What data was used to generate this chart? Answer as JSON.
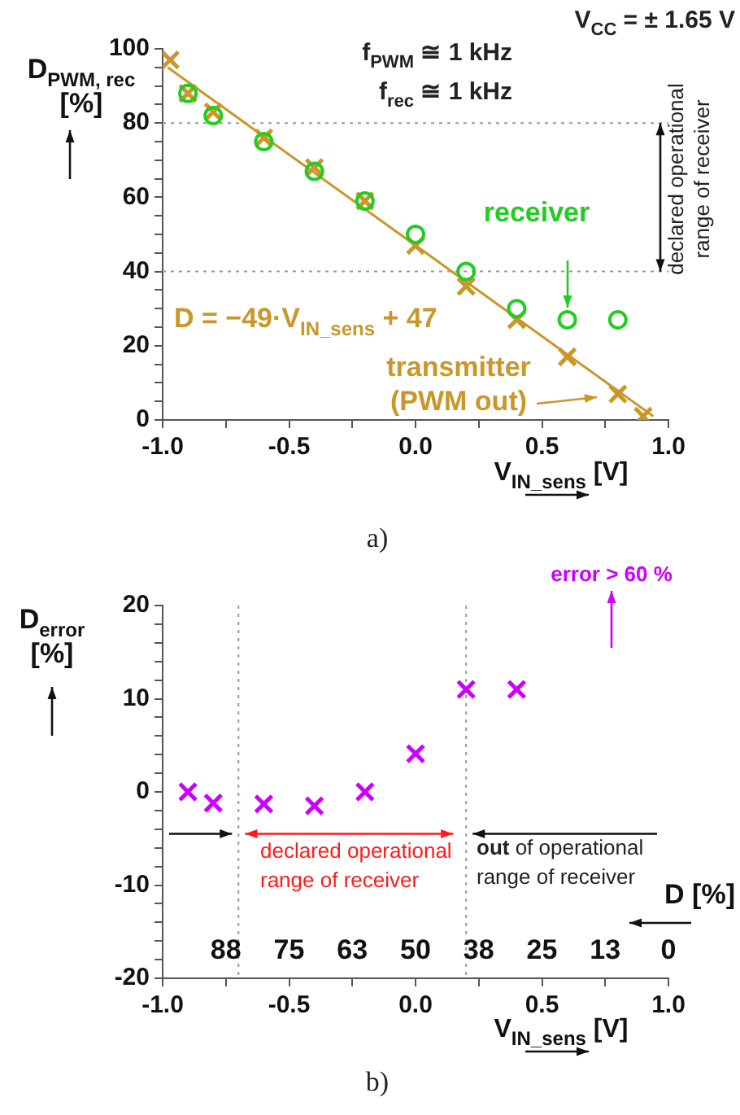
{
  "chart_data": [
    {
      "type": "scatter",
      "xlabel": "V$_{IN_sens}$ [V]",
      "ylabel": "D$_{PWM, rec}$ [%]",
      "xlim": [
        -1,
        1
      ],
      "xticks": [
        {
          "value": -1,
          "label": "-1.0"
        },
        {
          "value": -0.75,
          "label": null
        },
        {
          "value": -0.5,
          "label": "-0.5"
        },
        {
          "value": -0.25,
          "label": null
        },
        {
          "value": 0,
          "label": "0.0"
        },
        {
          "value": 0.25,
          "label": null
        },
        {
          "value": 0.5,
          "label": "0.5"
        },
        {
          "value": 0.75,
          "label": null
        },
        {
          "value": 1,
          "label": "1.0"
        }
      ],
      "ylim": [
        0,
        100
      ],
      "yticks": [
        0,
        {
          "value": 5,
          "label": null
        },
        {
          "value": 10,
          "label": null
        },
        {
          "value": 15,
          "label": null
        },
        20,
        {
          "value": 25,
          "label": null
        },
        {
          "value": 30,
          "label": null
        },
        {
          "value": 35,
          "label": null
        },
        40,
        {
          "value": 45,
          "label": null
        },
        {
          "value": 50,
          "label": null
        },
        {
          "value": 55,
          "label": null
        },
        60,
        {
          "value": 65,
          "label": null
        },
        {
          "value": 70,
          "label": null
        },
        {
          "value": 75,
          "label": null
        },
        80,
        {
          "value": 85,
          "label": null
        },
        {
          "value": 90,
          "label": null
        },
        {
          "value": 95,
          "label": null
        },
        100
      ],
      "series": [
        {
          "name": "receiver",
          "color": "#22cc22",
          "marker": "circle",
          "x": [
            -0.9,
            -0.8,
            -0.6,
            -0.4,
            -0.2,
            0,
            0.2,
            0.4,
            0.6,
            0.8
          ],
          "values": [
            88,
            82,
            75,
            67,
            59,
            50,
            40,
            30,
            27,
            27
          ]
        },
        {
          "name": "transmitter (PWM out)",
          "color": "#c9972a",
          "marker": "cross",
          "x": [
            -0.97,
            -0.9,
            -0.8,
            -0.6,
            -0.4,
            -0.2,
            0,
            0.2,
            0.4,
            0.6,
            0.8,
            0.9
          ],
          "values": [
            97,
            88,
            83,
            76,
            68,
            59,
            47,
            36,
            27,
            17,
            7,
            1
          ]
        },
        {
          "type": "line",
          "color": "#c9972a",
          "marker": "none",
          "x": [
            -0.98,
            0.94
          ],
          "values": [
            95,
            1
          ]
        }
      ],
      "ref_lines": [
        {
          "axis": "y",
          "value": 80,
          "label": null,
          "color": "#999999",
          "line_style": "dotted"
        },
        {
          "axis": "y",
          "value": 40,
          "label": null,
          "color": "#999999",
          "line_style": "dotted"
        }
      ],
      "annotations": [
        "V$_{CC}$ = ± 1.65 V",
        "f$_{PWM}$ ≅ 1 kHz",
        "f$_{rec}$ ≅ 1 kHz",
        "declared operational range of receiver",
        "a)",
        "D = −49·V$_{IN_sens}$ + 47"
      ],
      "grid": false
    },
    {
      "type": "scatter",
      "xlabel": "V$_{IN_sens}$ [V]",
      "ylabel": "D$_{error}$ [%]",
      "x2label": "D [%]",
      "xlim": [
        -1,
        1
      ],
      "xticks": [
        {
          "value": -1,
          "label": "-1.0"
        },
        {
          "value": -0.75,
          "label": null
        },
        {
          "value": -0.5,
          "label": "-0.5"
        },
        {
          "value": -0.25,
          "label": null
        },
        {
          "value": 0,
          "label": "0.0"
        },
        {
          "value": 0.25,
          "label": null
        },
        {
          "value": 0.5,
          "label": "0.5"
        },
        {
          "value": 0.75,
          "label": null
        },
        {
          "value": 1,
          "label": "1.0"
        }
      ],
      "x2lim": [
        100,
        0
      ],
      "x2ticks": [
        {
          "value": 87.5,
          "label": "88"
        },
        75,
        {
          "value": 62.5,
          "label": "63"
        },
        50,
        {
          "value": 37.5,
          "label": "38"
        },
        25,
        {
          "value": 12.5,
          "label": "13"
        },
        0
      ],
      "ylim": [
        -20,
        20
      ],
      "yticks": [
        -20,
        {
          "value": -18,
          "label": null
        },
        {
          "value": -16,
          "label": null
        },
        {
          "value": -14,
          "label": null
        },
        {
          "value": -12,
          "label": null
        },
        -10,
        {
          "value": -8,
          "label": null
        },
        {
          "value": -6,
          "label": null
        },
        {
          "value": -4,
          "label": null
        },
        {
          "value": -2,
          "label": null
        },
        0,
        {
          "value": 2,
          "label": null
        },
        {
          "value": 4,
          "label": null
        },
        {
          "value": 6,
          "label": null
        },
        {
          "value": 8,
          "label": null
        },
        10,
        {
          "value": 12,
          "label": null
        },
        {
          "value": 14,
          "label": null
        },
        {
          "value": 16,
          "label": null
        },
        {
          "value": 18,
          "label": null
        },
        20
      ],
      "series": [
        {
          "color": "#cc00ff",
          "marker": "cross",
          "x": [
            -0.9,
            -0.8,
            -0.6,
            -0.4,
            -0.2,
            0,
            0.2,
            0.4
          ],
          "values": [
            0,
            -1.2,
            -1.3,
            -1.5,
            0,
            4.1,
            11,
            11
          ]
        }
      ],
      "ref_lines": [
        {
          "axis": "x",
          "value": -0.7,
          "label": null,
          "color": "#999999",
          "line_style": "dotted"
        },
        {
          "axis": "x",
          "value": 0.2,
          "label": null,
          "color": "#999999",
          "line_style": "dotted"
        }
      ],
      "annotations": [
        "error > 60 %",
        "declared operational range of receiver",
        {
          "text": "out of operational range of receiver",
          "x": 0.2,
          "y": -4.5
        },
        "b)"
      ],
      "grid": false
    }
  ]
}
